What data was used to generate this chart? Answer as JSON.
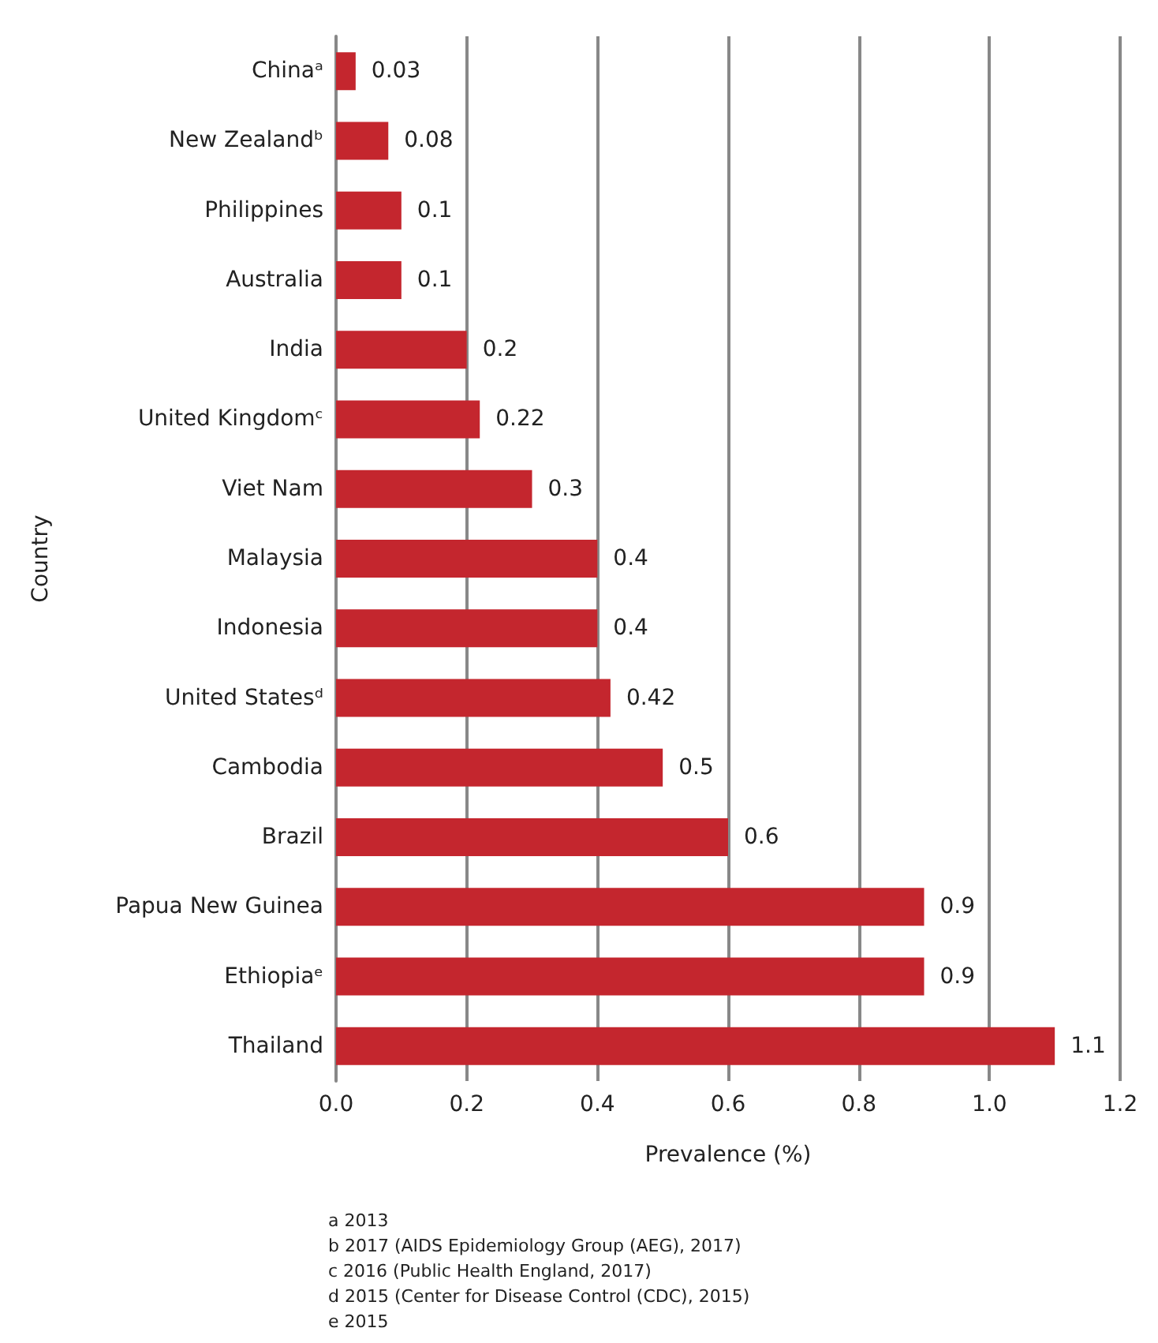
{
  "chart_data": {
    "type": "bar",
    "orientation": "horizontal",
    "xlabel": "Prevalence (%)",
    "ylabel": "Country",
    "categories": [
      "Chinaᵃ",
      "New Zealandᵇ",
      "Philippines",
      "Australia",
      "India",
      "United Kingdomᶜ",
      "Viet Nam",
      "Malaysia",
      "Indonesia",
      "United Statesᵈ",
      "Cambodia",
      "Brazil",
      "Papua New Guinea",
      "Ethiopiaᵉ",
      "Thailand"
    ],
    "values": [
      0.03,
      0.08,
      0.1,
      0.1,
      0.2,
      0.22,
      0.3,
      0.4,
      0.4,
      0.42,
      0.5,
      0.6,
      0.9,
      0.9,
      1.1
    ],
    "color": "#c4262e",
    "data_labels": true,
    "grid": "x",
    "xlim": [
      0,
      1.2
    ],
    "xticks": [
      {
        "value": 0,
        "label": "0.0"
      },
      {
        "value": 0.2,
        "label": "0.2"
      },
      {
        "value": 0.4,
        "label": "0.4"
      },
      {
        "value": 0.6,
        "label": "0.6"
      },
      {
        "value": 0.8,
        "label": "0.8"
      },
      {
        "value": 1,
        "label": "1.0"
      },
      {
        "value": 1.2,
        "label": "1.2"
      }
    ],
    "annotations": [
      "a 2013",
      "b 2017 (AIDS Epidemiology Group (AEG), 2017)",
      "c 2016 (Public Health England, 2017)",
      "d 2015 (Center for Disease Control (CDC), 2015)",
      "e 2015"
    ]
  }
}
